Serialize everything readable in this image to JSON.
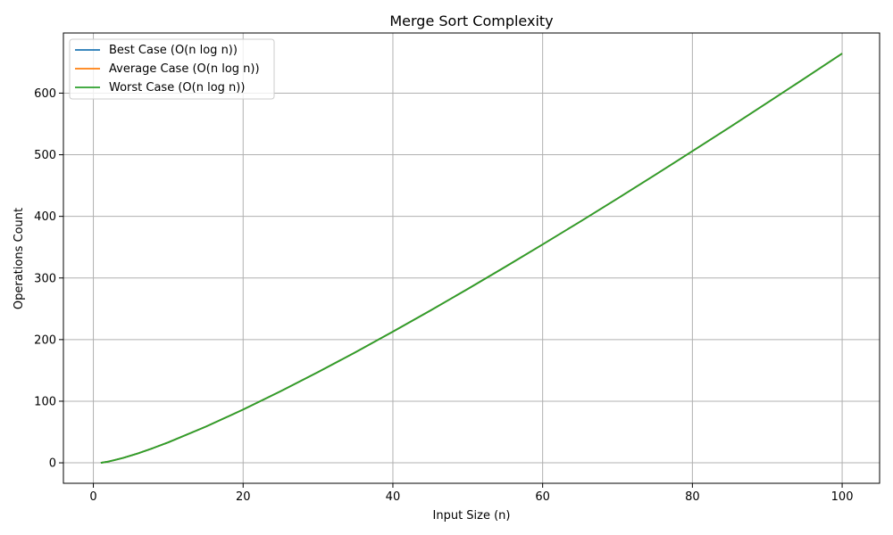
{
  "chart_data": {
    "type": "line",
    "title": "Merge Sort Complexity",
    "xlabel": "Input Size (n)",
    "ylabel": "Operations Count",
    "xlim": [
      -4.0,
      105.0
    ],
    "ylim": [
      -33.2,
      697.6
    ],
    "xticks": [
      0,
      20,
      40,
      60,
      80,
      100
    ],
    "xtick_labels": [
      "0",
      "20",
      "40",
      "60",
      "80",
      "100"
    ],
    "yticks": [
      0,
      100,
      200,
      300,
      400,
      500,
      600
    ],
    "ytick_labels": [
      "0",
      "100",
      "200",
      "300",
      "400",
      "500",
      "600"
    ],
    "grid": true,
    "legend_position": "upper-left",
    "x": [
      1,
      2,
      4,
      6,
      8,
      10,
      15,
      20,
      25,
      30,
      35,
      40,
      45,
      50,
      55,
      60,
      65,
      70,
      75,
      80,
      85,
      90,
      95,
      100
    ],
    "series": [
      {
        "name": "Best Case (O(n log n))",
        "color": "#1f77b4",
        "values": [
          0,
          2,
          8,
          15.5,
          24,
          33.2,
          58.6,
          86.4,
          116.1,
          147.2,
          179.5,
          212.9,
          247.1,
          282.2,
          318.0,
          354.4,
          391.4,
          429.0,
          467.1,
          505.8,
          544.8,
          584.3,
          624.1,
          664.4
        ]
      },
      {
        "name": "Average Case (O(n log n))",
        "color": "#ff7f0e",
        "values": [
          0,
          2,
          8,
          15.5,
          24,
          33.2,
          58.6,
          86.4,
          116.1,
          147.2,
          179.5,
          212.9,
          247.1,
          282.2,
          318.0,
          354.4,
          391.4,
          429.0,
          467.1,
          505.8,
          544.8,
          584.3,
          624.1,
          664.4
        ]
      },
      {
        "name": "Worst Case (O(n log n))",
        "color": "#2ca02c",
        "values": [
          0,
          2,
          8,
          15.5,
          24,
          33.2,
          58.6,
          86.4,
          116.1,
          147.2,
          179.5,
          212.9,
          247.1,
          282.2,
          318.0,
          354.4,
          391.4,
          429.0,
          467.1,
          505.8,
          544.8,
          584.3,
          624.1,
          664.4
        ]
      }
    ]
  }
}
